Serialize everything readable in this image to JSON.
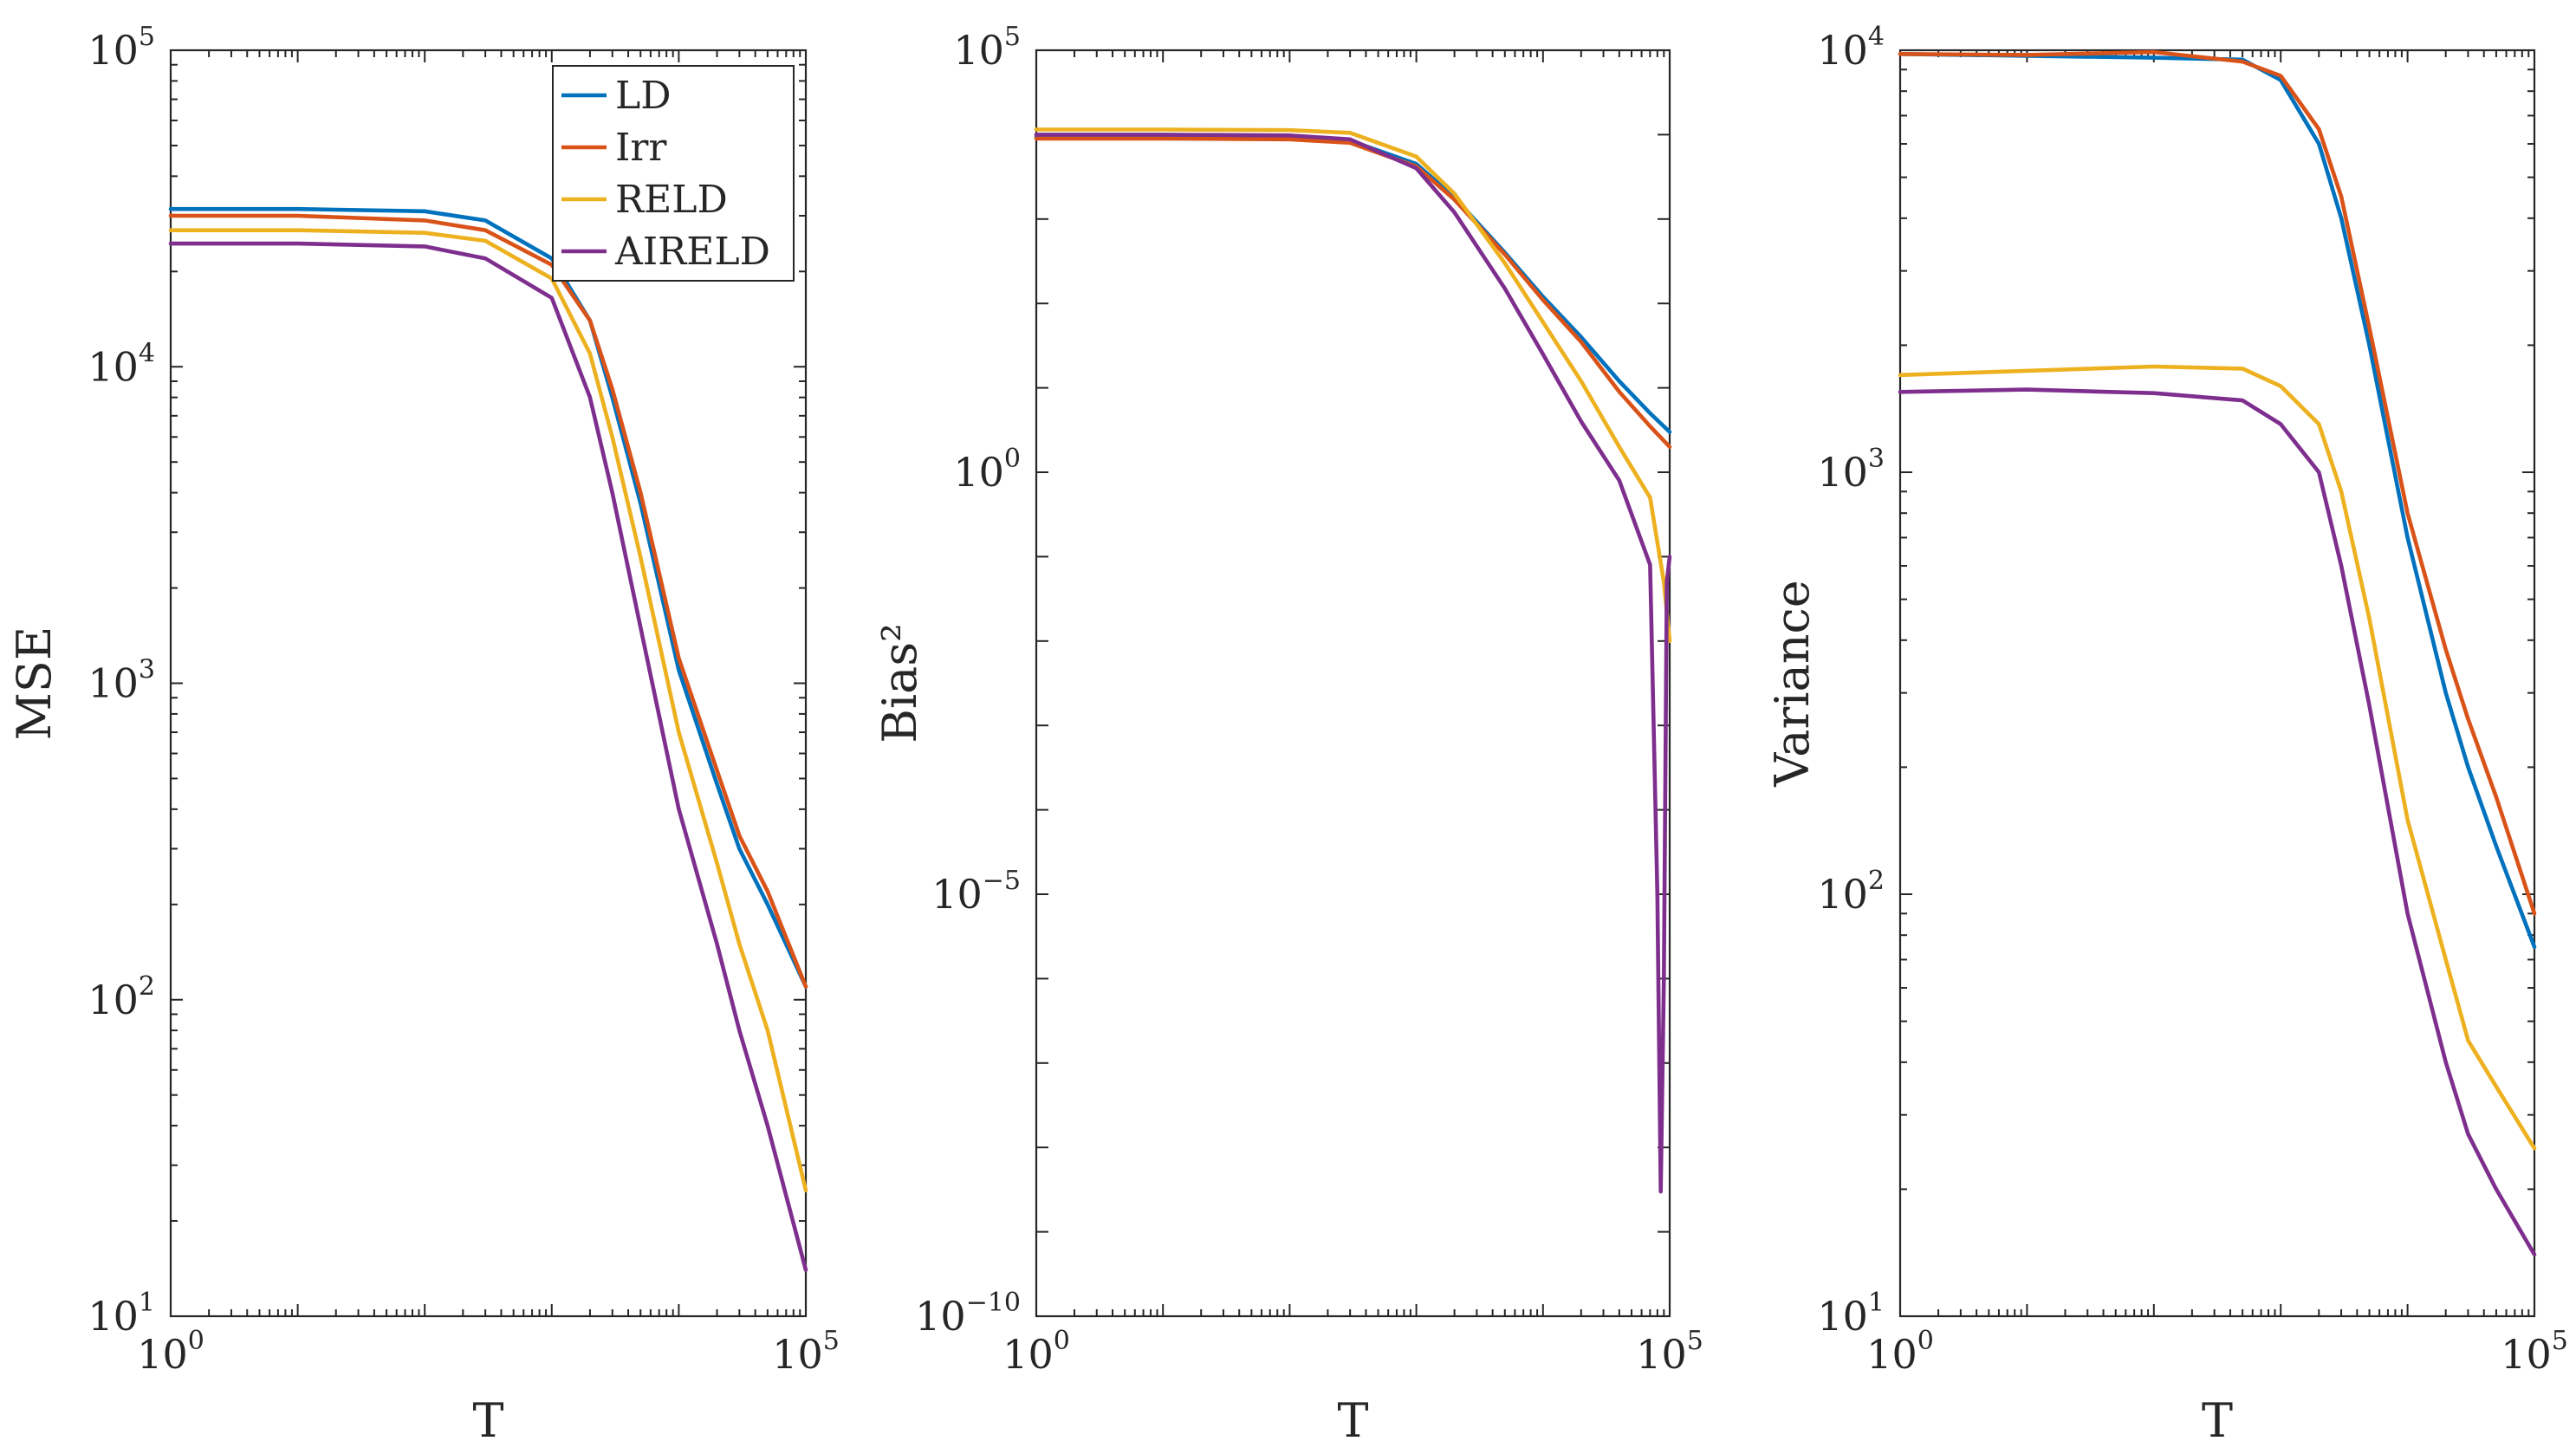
{
  "chart_data": [
    {
      "type": "line",
      "title": "",
      "xlabel": "T",
      "ylabel": "MSE",
      "xscale": "log",
      "yscale": "log",
      "xlim": [
        1,
        100000
      ],
      "ylim": [
        10,
        100000
      ],
      "xticks": [
        1,
        100000
      ],
      "yticks": [
        10,
        100,
        1000,
        10000,
        100000
      ],
      "legend": "top-right",
      "series": [
        {
          "name": "LD",
          "color": "#0072BD",
          "x": [
            1,
            10,
            100,
            300,
            1000,
            2000,
            3000,
            5000,
            10000,
            20000,
            30000,
            50000,
            100000
          ],
          "y": [
            31500,
            31500,
            31000,
            29000,
            22000,
            14000,
            8000,
            3700,
            1100,
            480,
            300,
            200,
            110
          ]
        },
        {
          "name": "Irr",
          "color": "#D95319",
          "x": [
            1,
            10,
            100,
            300,
            1000,
            2000,
            3000,
            5000,
            10000,
            20000,
            30000,
            50000,
            100000
          ],
          "y": [
            30000,
            30000,
            29000,
            27000,
            21000,
            14000,
            8500,
            4000,
            1200,
            530,
            330,
            220,
            110
          ]
        },
        {
          "name": "RELD",
          "color": "#EDB120",
          "x": [
            1,
            10,
            100,
            300,
            1000,
            2000,
            3000,
            5000,
            10000,
            20000,
            30000,
            50000,
            100000
          ],
          "y": [
            27000,
            27000,
            26500,
            25000,
            19000,
            11000,
            6000,
            2500,
            700,
            270,
            150,
            80,
            25
          ]
        },
        {
          "name": "AIRELD",
          "color": "#7E2F8E",
          "x": [
            1,
            10,
            100,
            300,
            1000,
            2000,
            3000,
            5000,
            10000,
            20000,
            30000,
            50000,
            100000
          ],
          "y": [
            24500,
            24500,
            24000,
            22000,
            16500,
            8000,
            4000,
            1500,
            400,
            150,
            80,
            40,
            14
          ]
        }
      ]
    },
    {
      "type": "line",
      "title": "",
      "xlabel": "T",
      "ylabel": "Bias²",
      "xscale": "log",
      "yscale": "log",
      "xlim": [
        1,
        100000
      ],
      "ylim": [
        1e-10,
        100000
      ],
      "xticks": [
        1,
        100000
      ],
      "yticks": [
        1e-10,
        1e-05,
        1,
        100000
      ],
      "series": [
        {
          "name": "LD",
          "color": "#0072BD",
          "x": [
            1,
            10,
            100,
            300,
            1000,
            2000,
            5000,
            10000,
            20000,
            40000,
            70000,
            100000
          ],
          "y": [
            9500,
            9500,
            9300,
            8500,
            4500,
            1800,
            400,
            120,
            40,
            12,
            5,
            3
          ]
        },
        {
          "name": "Irr",
          "color": "#D95319",
          "x": [
            1,
            10,
            100,
            300,
            1000,
            2000,
            5000,
            10000,
            20000,
            40000,
            70000,
            100000
          ],
          "y": [
            9000,
            9000,
            8800,
            8000,
            4200,
            1700,
            380,
            110,
            35,
            9,
            3.5,
            2
          ]
        },
        {
          "name": "RELD",
          "color": "#EDB120",
          "x": [
            1,
            10,
            100,
            300,
            1000,
            2000,
            5000,
            10000,
            20000,
            40000,
            70000,
            90000,
            100000
          ],
          "y": [
            11500,
            11500,
            11300,
            10500,
            5500,
            2000,
            300,
            60,
            12,
            2,
            0.5,
            0.05,
            0.01
          ]
        },
        {
          "name": "AIRELD",
          "color": "#7E2F8E",
          "x": [
            1,
            10,
            100,
            300,
            1000,
            2000,
            5000,
            10000,
            20000,
            40000,
            70000,
            80000,
            85000,
            90000,
            95000,
            100000
          ],
          "y": [
            10000,
            10000,
            9800,
            8800,
            4000,
            1200,
            150,
            25,
            4,
            0.8,
            0.08,
            1e-05,
            3e-09,
            1e-06,
            0.05,
            0.1
          ]
        }
      ]
    },
    {
      "type": "line",
      "title": "",
      "xlabel": "T",
      "ylabel": "Variance",
      "xscale": "log",
      "yscale": "log",
      "xlim": [
        1,
        100000
      ],
      "ylim": [
        10,
        10000
      ],
      "xticks": [
        1,
        100000
      ],
      "yticks": [
        10,
        100,
        1000,
        10000
      ],
      "series": [
        {
          "name": "LD",
          "color": "#0072BD",
          "x": [
            1,
            10,
            100,
            500,
            1000,
            2000,
            3000,
            5000,
            10000,
            20000,
            30000,
            50000,
            100000
          ],
          "y": [
            9800,
            9700,
            9600,
            9500,
            8500,
            6000,
            4000,
            2000,
            700,
            300,
            200,
            130,
            75
          ]
        },
        {
          "name": "Irr",
          "color": "#D95319",
          "x": [
            1,
            10,
            100,
            500,
            1000,
            2000,
            3000,
            5000,
            10000,
            20000,
            30000,
            50000,
            100000
          ],
          "y": [
            9800,
            9750,
            9900,
            9400,
            8700,
            6500,
            4500,
            2200,
            800,
            380,
            260,
            170,
            90
          ]
        },
        {
          "name": "RELD",
          "color": "#EDB120",
          "x": [
            1,
            10,
            100,
            500,
            1000,
            2000,
            3000,
            5000,
            10000,
            20000,
            30000,
            50000,
            100000
          ],
          "y": [
            1700,
            1740,
            1780,
            1760,
            1600,
            1300,
            900,
            450,
            150,
            70,
            45,
            35,
            25
          ]
        },
        {
          "name": "AIRELD",
          "color": "#7E2F8E",
          "x": [
            1,
            10,
            100,
            500,
            1000,
            2000,
            3000,
            5000,
            10000,
            20000,
            30000,
            50000,
            100000
          ],
          "y": [
            1550,
            1570,
            1540,
            1480,
            1300,
            1000,
            600,
            280,
            90,
            40,
            27,
            20,
            14
          ]
        }
      ]
    }
  ]
}
